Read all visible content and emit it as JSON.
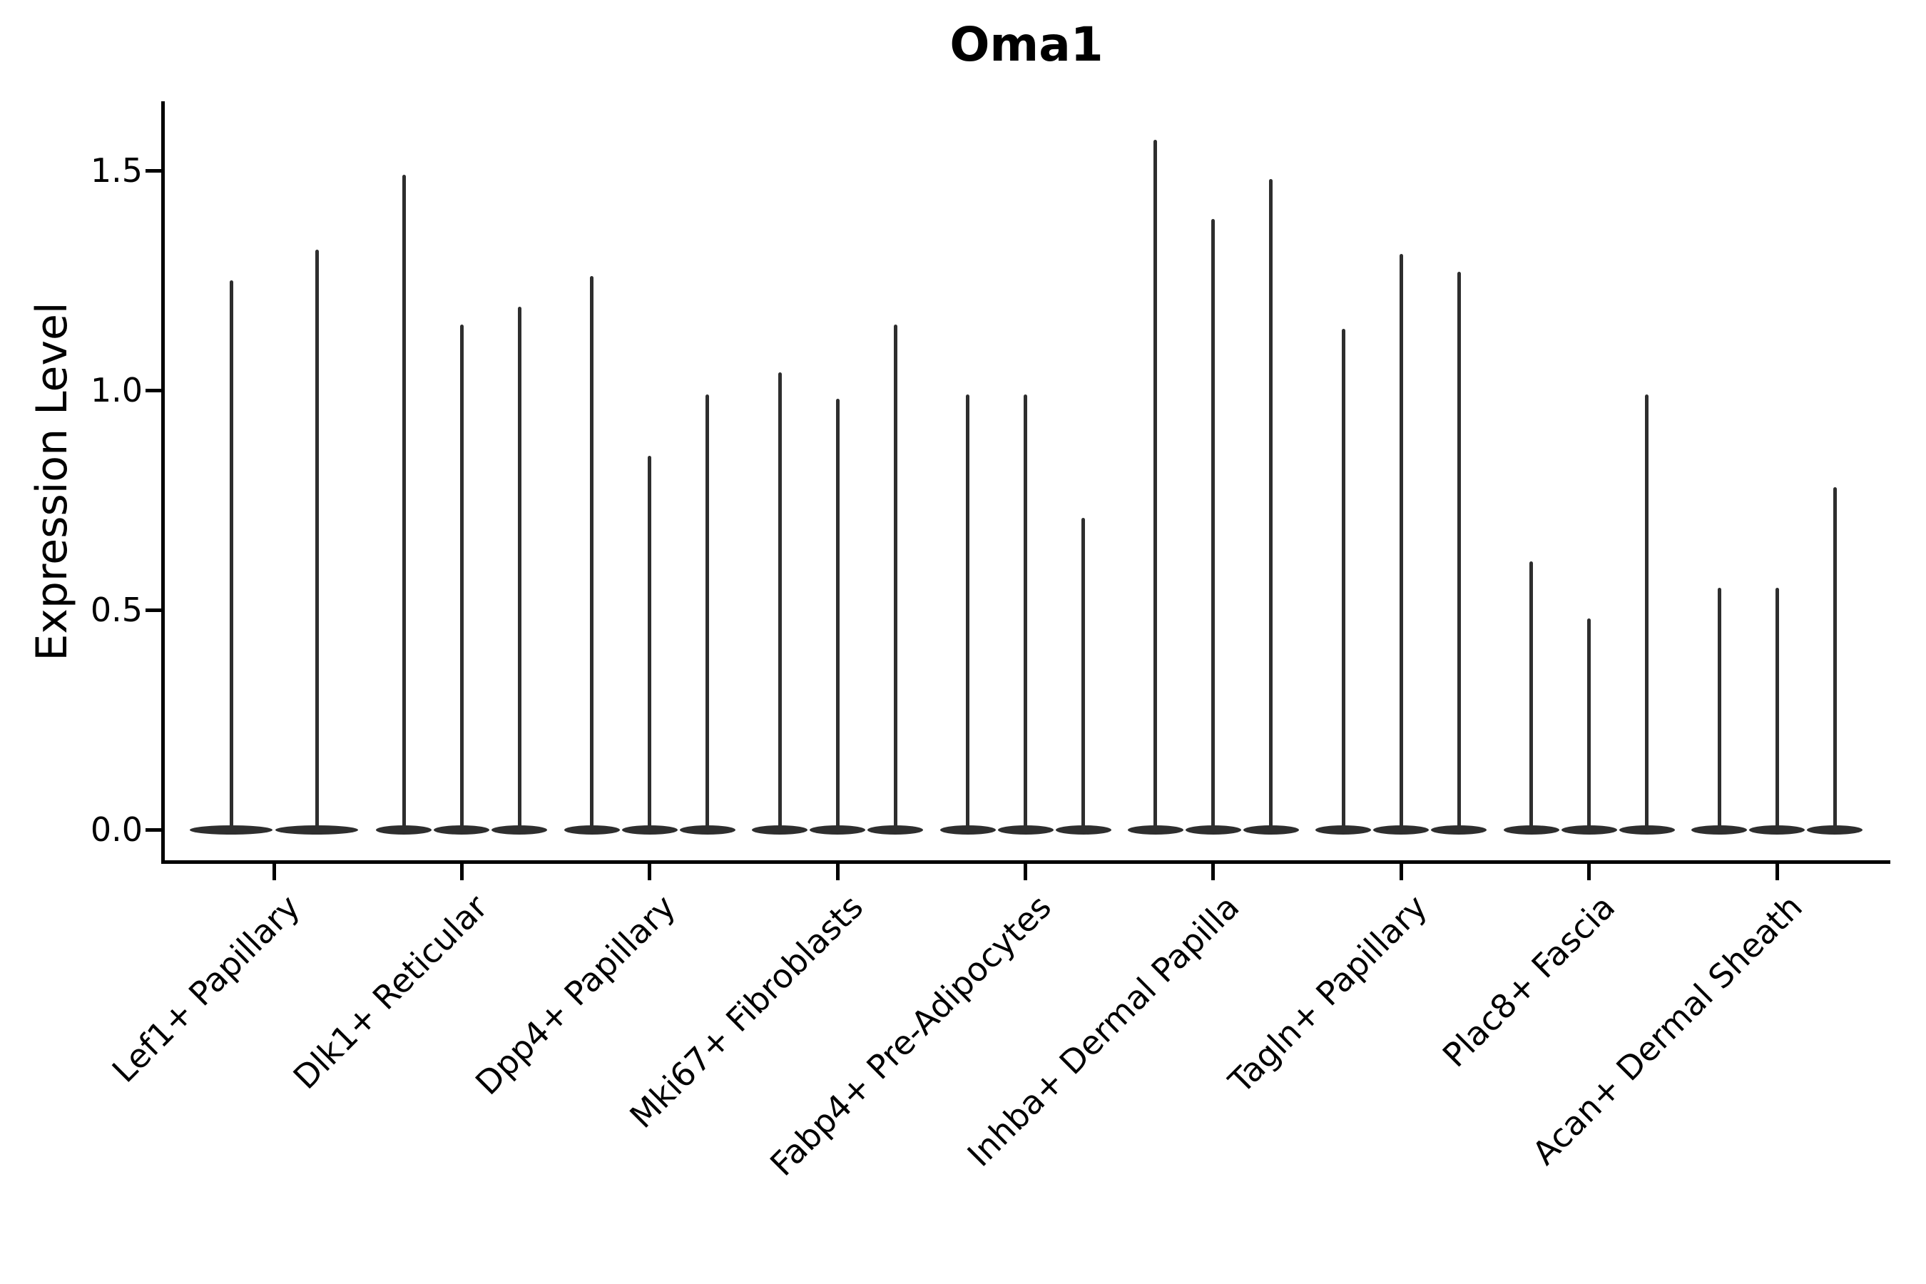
{
  "title": "Oma1",
  "chart_data": {
    "type": "violin",
    "title": "Oma1",
    "xlabel": "",
    "ylabel": "Expression Level",
    "ylim": [
      -0.073,
      1.657
    ],
    "grid": false,
    "legend": "none",
    "violin_color": "#2e2e2e",
    "axis_color": "#000000",
    "ytick_labels": [
      "0.0",
      "0.5",
      "1.0",
      "1.5"
    ],
    "ytick_values": [
      0.0,
      0.5,
      1.0,
      1.5
    ],
    "categories": [
      "Lef1+ Papillary",
      "Dlk1+ Reticular",
      "Dpp4+ Papillary",
      "Mki67+ Fibroblasts",
      "Fabp4+ Pre-Adipocytes",
      "Inhba+ Dermal Papilla",
      "Tagln+ Papillary",
      "Plac8+ Fascia",
      "Acan+ Dermal Sheath"
    ],
    "series_note": "each category holds the max expression (spike top) of its narrow violins, all violins peak in density at 0",
    "values": [
      [
        1.25,
        1.32
      ],
      [
        1.49,
        1.15,
        1.19
      ],
      [
        1.26,
        0.85,
        0.99
      ],
      [
        1.04,
        0.98,
        1.15
      ],
      [
        0.99,
        0.99,
        0.71
      ],
      [
        1.57,
        1.39,
        1.48
      ],
      [
        1.14,
        1.31,
        1.27
      ],
      [
        0.61,
        0.48,
        0.99
      ],
      [
        0.55,
        0.55,
        0.78
      ]
    ]
  }
}
